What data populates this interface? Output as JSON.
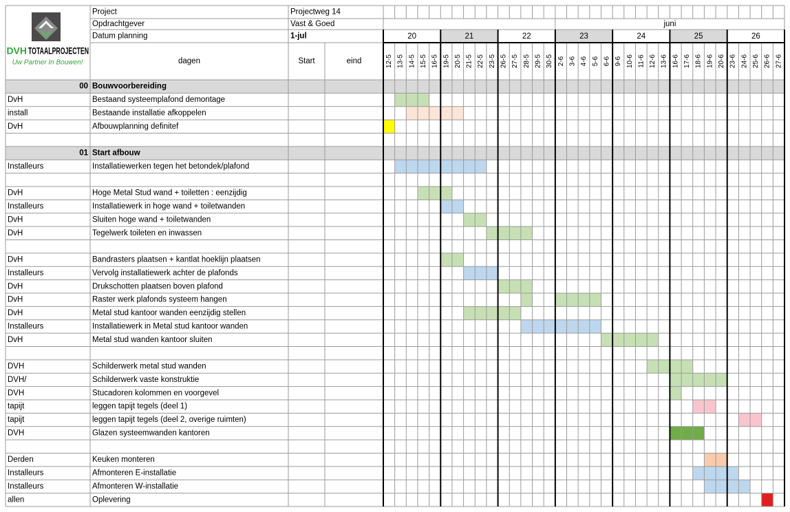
{
  "header": {
    "labels": [
      "Project",
      "Opdrachtgever",
      "Datum  planning"
    ],
    "values": [
      "Projectweg 14",
      "Vast & Goed",
      "1-jul"
    ],
    "logo_brand": "DVH",
    "logo_title": "TOTAALPROJECTEN",
    "logo_slogan": "Uw Partner In Bouwen!",
    "month": "juni",
    "col_days": "dagen",
    "col_start": "Start",
    "col_end": "eind"
  },
  "weeks": [
    {
      "label": 20,
      "shaded": false
    },
    {
      "label": 21,
      "shaded": true
    },
    {
      "label": 22,
      "shaded": false
    },
    {
      "label": 23,
      "shaded": true
    },
    {
      "label": 24,
      "shaded": false
    },
    {
      "label": 25,
      "shaded": true
    },
    {
      "label": 26,
      "shaded": false
    }
  ],
  "days": [
    "12-5",
    "13-5",
    "14-5",
    "15-5",
    "16-5",
    "19-5",
    "20-5",
    "21-5",
    "22-5",
    "23-5",
    "26-5",
    "27-5",
    "28-5",
    "29-5",
    "30-5",
    "2-6",
    "3-6",
    "4-6",
    "5-6",
    "6-6",
    "9-6",
    "10-6",
    "11-6",
    "12-6",
    "13-6",
    "16-6",
    "17-6",
    "18-6",
    "19-6",
    "20-6",
    "23-6",
    "24-6",
    "25-6",
    "26-6",
    "27-6"
  ],
  "rows": [
    {
      "owner": "00",
      "task": "Bouwvoorbereiding",
      "section": true
    },
    {
      "owner": "DvH",
      "task": "Bestaand systeemplafond demontage",
      "spans": [
        {
          "from": "13-5",
          "to": "15-5",
          "color": "#c6e0b4"
        }
      ]
    },
    {
      "owner": "install",
      "task": "Bestaande installatie afkoppelen",
      "spans": [
        {
          "from": "14-5",
          "to": "20-5",
          "color": "#fce4d6"
        }
      ]
    },
    {
      "owner": "DvH",
      "task": "Afbouwplanning definitef",
      "spans": [
        {
          "from": "12-5",
          "to": "12-5",
          "color": "#ffff00"
        }
      ]
    },
    {},
    {
      "owner": "01",
      "task": "Start afbouw",
      "section": true
    },
    {
      "owner": "Installeurs",
      "task": "Installatiewerken tegen het betondek/plafond",
      "spans": [
        {
          "from": "13-5",
          "to": "22-5",
          "color": "#bdd7ee"
        }
      ]
    },
    {},
    {
      "owner": "DvH",
      "task": "Hoge Metal Stud wand + toiletten : eenzijdig",
      "spans": [
        {
          "from": "15-5",
          "to": "19-5",
          "color": "#c6e0b4"
        }
      ]
    },
    {
      "owner": "Installeurs",
      "task": "Installatiewerk  in hoge wand + toiletwanden",
      "spans": [
        {
          "from": "19-5",
          "to": "20-5",
          "color": "#bdd7ee"
        }
      ]
    },
    {
      "owner": "DvH",
      "task": "Sluiten hoge wand + toiletwanden",
      "spans": [
        {
          "from": "21-5",
          "to": "22-5",
          "color": "#c6e0b4"
        }
      ]
    },
    {
      "owner": "DvH",
      "task": "Tegelwerk toileten en inwassen",
      "spans": [
        {
          "from": "23-5",
          "to": "28-5",
          "color": "#c6e0b4"
        }
      ]
    },
    {},
    {
      "owner": "DvH",
      "task": "Bandrasters plaatsen  + kantlat hoeklijn  plaatsen",
      "spans": [
        {
          "from": "19-5",
          "to": "20-5",
          "color": "#c6e0b4"
        }
      ]
    },
    {
      "owner": "Installeurs",
      "task": "Vervolg installatiewerk  achter de plafonds",
      "spans": [
        {
          "from": "21-5",
          "to": "23-5",
          "color": "#bdd7ee"
        }
      ]
    },
    {
      "owner": "DvH",
      "task": "Drukschotten plaatsen boven plafond",
      "spans": [
        {
          "from": "26-5",
          "to": "28-5",
          "color": "#c6e0b4"
        }
      ]
    },
    {
      "owner": "DvH",
      "task": "Raster werk plafonds systeem  hangen",
      "spans": [
        {
          "from": "28-5",
          "to": "28-5",
          "color": "#c6e0b4"
        },
        {
          "from": "2-6",
          "to": "5-6",
          "color": "#c6e0b4"
        }
      ]
    },
    {
      "owner": "DvH",
      "task": "Metal stud kantoor wanden eenzijdig stellen",
      "spans": [
        {
          "from": "21-5",
          "to": "27-5",
          "color": "#c6e0b4"
        }
      ]
    },
    {
      "owner": "Installeurs",
      "task": "Installatiewerk in Metal  stud kantoor wanden",
      "spans": [
        {
          "from": "28-5",
          "to": "5-6",
          "color": "#bdd7ee"
        }
      ]
    },
    {
      "owner": "DvH",
      "task": "Metal stud wanden kantoor sluiten",
      "spans": [
        {
          "from": "6-6",
          "to": "12-6",
          "color": "#c6e0b4"
        }
      ]
    },
    {},
    {
      "owner": "DVH",
      "task": "Schilderwerk metal stud wanden",
      "spans": [
        {
          "from": "12-6",
          "to": "17-6",
          "color": "#c6e0b4"
        }
      ]
    },
    {
      "owner": "DVH/",
      "task": "Schilderwerk vaste konstruktie",
      "spans": [
        {
          "from": "16-6",
          "to": "20-6",
          "color": "#c6e0b4"
        }
      ]
    },
    {
      "owner": "DVH",
      "task": "Stucadoren kolommen en voorgevel",
      "spans": [
        {
          "from": "16-6",
          "to": "16-6",
          "color": "#c6e0b4"
        }
      ]
    },
    {
      "owner": "tapijt",
      "task": "leggen  tapijt tegels  (deel 1)",
      "spans": [
        {
          "from": "18-6",
          "to": "19-6",
          "color": "#f8c5cf"
        }
      ]
    },
    {
      "owner": "tapijt",
      "task": "leggen  tapijt tegels  (deel 2, overige ruimten)",
      "spans": [
        {
          "from": "24-6",
          "to": "25-6",
          "color": "#f8c5cf"
        }
      ]
    },
    {
      "owner": "DVH",
      "task": "Glazen systeemwanden kantoren",
      "spans": [
        {
          "from": "16-6",
          "to": "18-6",
          "color": "#70ad47"
        }
      ]
    },
    {},
    {
      "owner": "Derden",
      "task": "Keuken monteren",
      "spans": [
        {
          "from": "19-6",
          "to": "20-6",
          "color": "#f8cbad"
        }
      ]
    },
    {
      "owner": "Installeurs",
      "task": "Afmonteren E-installatie",
      "spans": [
        {
          "from": "18-6",
          "to": "23-6",
          "color": "#bdd7ee"
        }
      ]
    },
    {
      "owner": "Installeurs",
      "task": "Afmonteren W-installatie",
      "spans": [
        {
          "from": "19-6",
          "to": "24-6",
          "color": "#bdd7ee"
        }
      ]
    },
    {
      "owner": "allen",
      "task": "Oplevering",
      "spans": [
        {
          "from": "26-6",
          "to": "26-6",
          "color": "#e02020"
        }
      ]
    }
  ]
}
